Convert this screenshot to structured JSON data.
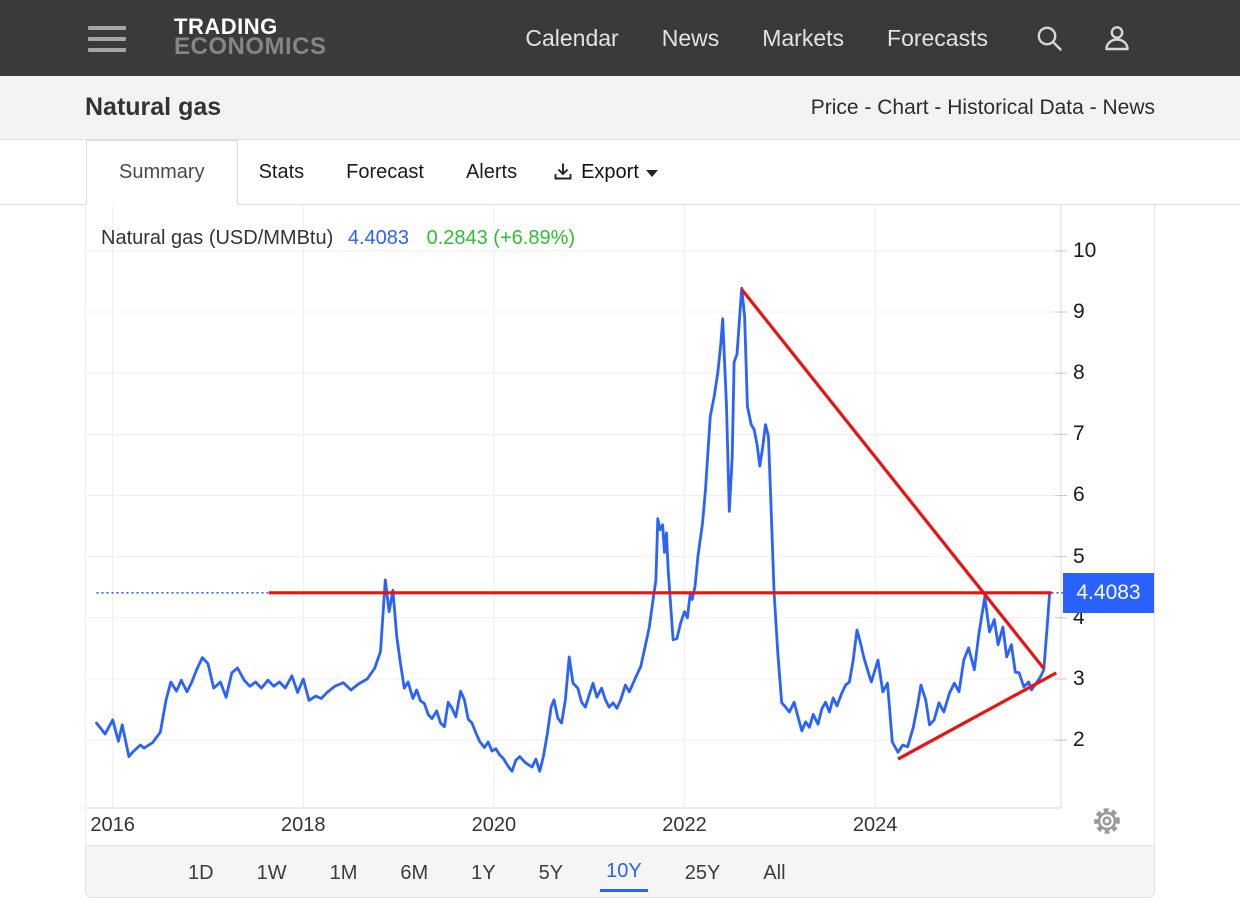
{
  "navbar": {
    "brand_line1": "TRADING",
    "brand_line2": "ECONOMICS",
    "items": [
      "Calendar",
      "News",
      "Markets",
      "Forecasts"
    ],
    "icons": {
      "menu": "hamburger-icon",
      "search": "search-icon",
      "user": "user-icon"
    }
  },
  "header": {
    "title": "Natural gas",
    "links": [
      "Price",
      "Chart",
      "Historical Data",
      "News"
    ],
    "separator": " - "
  },
  "tabs": {
    "items": [
      "Summary",
      "Stats",
      "Forecast",
      "Alerts"
    ],
    "active": "Summary",
    "export_label": "Export",
    "export_icon": "download-icon",
    "export_caret": "caret-down-icon"
  },
  "chart": {
    "instrument_label": "Natural gas (USD/MMBtu)",
    "price_text": "4.4083",
    "change_text": "0.2843 (+6.89%)",
    "badge_value": "4.4083",
    "badge_color": "#2962ff",
    "line_color": "#2962ff",
    "trend_color": "#ee1111",
    "up_color": "#2fbf30",
    "settings_icon": "gear-icon"
  },
  "toolbar": {
    "ranges": [
      "1D",
      "1W",
      "1M",
      "6M",
      "1Y",
      "5Y",
      "10Y",
      "25Y",
      "All"
    ],
    "active": "10Y"
  },
  "chart_data": {
    "type": "line",
    "title": "Natural gas (USD/MMBtu)",
    "unit": "USD/MMBtu",
    "last_price": 4.4083,
    "change": 0.2843,
    "change_pct": 6.89,
    "range_shown": "10Y",
    "grid": true,
    "x_ticks": [
      2016,
      2018,
      2020,
      2022,
      2024
    ],
    "y_ticks": [
      10,
      9,
      8,
      7,
      6,
      5,
      4,
      3,
      2
    ],
    "xlim": [
      2015.72,
      2025.95
    ],
    "ylim": [
      0.89,
      10.75
    ],
    "price_line": {
      "value": 4.4083,
      "style": "dotted",
      "color": "#2962ff"
    },
    "trendlines": [
      {
        "name": "horizontal-resistance",
        "color": "#ee1111",
        "x1": 2017.64,
        "y1": 4.4083,
        "x2": 2025.85,
        "y2": 4.4083
      },
      {
        "name": "downtrend-line",
        "color": "#ee1111",
        "x1": 2022.6,
        "y1": 9.37,
        "x2": 2025.77,
        "y2": 3.17
      },
      {
        "name": "uptrend-line",
        "color": "#ee1111",
        "x1": 2024.24,
        "y1": 1.69,
        "x2": 2025.9,
        "y2": 3.1
      }
    ],
    "series": [
      {
        "name": "Natural gas",
        "color": "#2962ff",
        "points": [
          [
            2015.83,
            2.28
          ],
          [
            2015.92,
            2.1
          ],
          [
            2016.0,
            2.33
          ],
          [
            2016.06,
            1.98
          ],
          [
            2016.1,
            2.25
          ],
          [
            2016.17,
            1.73
          ],
          [
            2016.22,
            1.82
          ],
          [
            2016.29,
            1.92
          ],
          [
            2016.33,
            1.87
          ],
          [
            2016.42,
            1.96
          ],
          [
            2016.5,
            2.13
          ],
          [
            2016.56,
            2.66
          ],
          [
            2016.61,
            2.95
          ],
          [
            2016.67,
            2.8
          ],
          [
            2016.72,
            2.98
          ],
          [
            2016.78,
            2.79
          ],
          [
            2016.83,
            2.95
          ],
          [
            2016.88,
            3.15
          ],
          [
            2016.94,
            3.35
          ],
          [
            2017.0,
            3.25
          ],
          [
            2017.06,
            2.85
          ],
          [
            2017.13,
            2.95
          ],
          [
            2017.19,
            2.7
          ],
          [
            2017.25,
            3.1
          ],
          [
            2017.31,
            3.18
          ],
          [
            2017.38,
            2.98
          ],
          [
            2017.44,
            2.88
          ],
          [
            2017.5,
            2.95
          ],
          [
            2017.56,
            2.85
          ],
          [
            2017.63,
            2.98
          ],
          [
            2017.69,
            2.88
          ],
          [
            2017.75,
            2.95
          ],
          [
            2017.81,
            2.85
          ],
          [
            2017.88,
            3.05
          ],
          [
            2017.94,
            2.78
          ],
          [
            2018.0,
            3.0
          ],
          [
            2018.06,
            2.65
          ],
          [
            2018.13,
            2.72
          ],
          [
            2018.19,
            2.68
          ],
          [
            2018.25,
            2.78
          ],
          [
            2018.33,
            2.88
          ],
          [
            2018.42,
            2.94
          ],
          [
            2018.5,
            2.82
          ],
          [
            2018.58,
            2.92
          ],
          [
            2018.67,
            3.0
          ],
          [
            2018.75,
            3.18
          ],
          [
            2018.81,
            3.45
          ],
          [
            2018.86,
            4.62
          ],
          [
            2018.9,
            4.1
          ],
          [
            2018.94,
            4.45
          ],
          [
            2018.98,
            3.7
          ],
          [
            2019.02,
            3.25
          ],
          [
            2019.06,
            2.85
          ],
          [
            2019.1,
            2.95
          ],
          [
            2019.15,
            2.68
          ],
          [
            2019.19,
            2.82
          ],
          [
            2019.23,
            2.64
          ],
          [
            2019.27,
            2.6
          ],
          [
            2019.31,
            2.42
          ],
          [
            2019.35,
            2.35
          ],
          [
            2019.4,
            2.48
          ],
          [
            2019.44,
            2.28
          ],
          [
            2019.48,
            2.22
          ],
          [
            2019.52,
            2.62
          ],
          [
            2019.56,
            2.52
          ],
          [
            2019.6,
            2.38
          ],
          [
            2019.65,
            2.8
          ],
          [
            2019.69,
            2.66
          ],
          [
            2019.73,
            2.34
          ],
          [
            2019.77,
            2.28
          ],
          [
            2019.81,
            2.12
          ],
          [
            2019.85,
            1.98
          ],
          [
            2019.9,
            1.88
          ],
          [
            2019.94,
            1.97
          ],
          [
            2019.98,
            1.82
          ],
          [
            2020.02,
            1.86
          ],
          [
            2020.06,
            1.76
          ],
          [
            2020.1,
            1.7
          ],
          [
            2020.15,
            1.57
          ],
          [
            2020.19,
            1.49
          ],
          [
            2020.23,
            1.67
          ],
          [
            2020.27,
            1.73
          ],
          [
            2020.33,
            1.63
          ],
          [
            2020.4,
            1.56
          ],
          [
            2020.44,
            1.69
          ],
          [
            2020.48,
            1.49
          ],
          [
            2020.52,
            1.74
          ],
          [
            2020.56,
            2.1
          ],
          [
            2020.6,
            2.54
          ],
          [
            2020.63,
            2.66
          ],
          [
            2020.67,
            2.36
          ],
          [
            2020.71,
            2.28
          ],
          [
            2020.75,
            2.66
          ],
          [
            2020.79,
            3.36
          ],
          [
            2020.83,
            2.93
          ],
          [
            2020.88,
            2.85
          ],
          [
            2020.92,
            2.62
          ],
          [
            2020.96,
            2.54
          ],
          [
            2021.0,
            2.74
          ],
          [
            2021.04,
            2.93
          ],
          [
            2021.08,
            2.7
          ],
          [
            2021.13,
            2.85
          ],
          [
            2021.17,
            2.66
          ],
          [
            2021.21,
            2.54
          ],
          [
            2021.25,
            2.61
          ],
          [
            2021.29,
            2.52
          ],
          [
            2021.33,
            2.66
          ],
          [
            2021.38,
            2.9
          ],
          [
            2021.42,
            2.79
          ],
          [
            2021.46,
            2.93
          ],
          [
            2021.5,
            3.07
          ],
          [
            2021.54,
            3.2
          ],
          [
            2021.58,
            3.48
          ],
          [
            2021.63,
            3.85
          ],
          [
            2021.67,
            4.3
          ],
          [
            2021.7,
            4.62
          ],
          [
            2021.72,
            5.62
          ],
          [
            2021.74,
            5.44
          ],
          [
            2021.77,
            5.52
          ],
          [
            2021.79,
            5.07
          ],
          [
            2021.81,
            5.39
          ],
          [
            2021.83,
            4.75
          ],
          [
            2021.88,
            3.64
          ],
          [
            2021.92,
            3.66
          ],
          [
            2021.96,
            3.92
          ],
          [
            2022.0,
            4.1
          ],
          [
            2022.03,
            4.0
          ],
          [
            2022.06,
            4.41
          ],
          [
            2022.08,
            4.3
          ],
          [
            2022.11,
            4.51
          ],
          [
            2022.14,
            5.0
          ],
          [
            2022.19,
            5.56
          ],
          [
            2022.22,
            6.1
          ],
          [
            2022.27,
            7.3
          ],
          [
            2022.31,
            7.61
          ],
          [
            2022.35,
            8.02
          ],
          [
            2022.38,
            8.48
          ],
          [
            2022.4,
            8.89
          ],
          [
            2022.44,
            7.46
          ],
          [
            2022.47,
            5.74
          ],
          [
            2022.5,
            6.62
          ],
          [
            2022.52,
            8.18
          ],
          [
            2022.55,
            8.31
          ],
          [
            2022.6,
            9.39
          ],
          [
            2022.63,
            8.93
          ],
          [
            2022.66,
            7.46
          ],
          [
            2022.7,
            7.16
          ],
          [
            2022.73,
            7.08
          ],
          [
            2022.76,
            6.84
          ],
          [
            2022.79,
            6.48
          ],
          [
            2022.82,
            6.79
          ],
          [
            2022.85,
            7.16
          ],
          [
            2022.88,
            6.97
          ],
          [
            2022.9,
            6.15
          ],
          [
            2022.94,
            4.41
          ],
          [
            2022.98,
            3.4
          ],
          [
            2023.02,
            2.61
          ],
          [
            2023.06,
            2.54
          ],
          [
            2023.1,
            2.46
          ],
          [
            2023.15,
            2.62
          ],
          [
            2023.19,
            2.38
          ],
          [
            2023.23,
            2.15
          ],
          [
            2023.27,
            2.3
          ],
          [
            2023.31,
            2.21
          ],
          [
            2023.35,
            2.42
          ],
          [
            2023.4,
            2.26
          ],
          [
            2023.44,
            2.51
          ],
          [
            2023.48,
            2.62
          ],
          [
            2023.52,
            2.46
          ],
          [
            2023.56,
            2.69
          ],
          [
            2023.6,
            2.56
          ],
          [
            2023.65,
            2.77
          ],
          [
            2023.69,
            2.9
          ],
          [
            2023.73,
            2.95
          ],
          [
            2023.77,
            3.31
          ],
          [
            2023.81,
            3.8
          ],
          [
            2023.85,
            3.56
          ],
          [
            2023.88,
            3.36
          ],
          [
            2023.92,
            3.15
          ],
          [
            2023.96,
            2.95
          ],
          [
            2024.03,
            3.31
          ],
          [
            2024.08,
            2.79
          ],
          [
            2024.13,
            2.93
          ],
          [
            2024.18,
            1.97
          ],
          [
            2024.24,
            1.8
          ],
          [
            2024.29,
            1.92
          ],
          [
            2024.34,
            1.89
          ],
          [
            2024.4,
            2.21
          ],
          [
            2024.45,
            2.61
          ],
          [
            2024.48,
            2.9
          ],
          [
            2024.53,
            2.66
          ],
          [
            2024.57,
            2.25
          ],
          [
            2024.62,
            2.33
          ],
          [
            2024.67,
            2.61
          ],
          [
            2024.72,
            2.46
          ],
          [
            2024.78,
            2.77
          ],
          [
            2024.83,
            2.93
          ],
          [
            2024.88,
            2.79
          ],
          [
            2024.93,
            3.31
          ],
          [
            2024.98,
            3.51
          ],
          [
            2025.04,
            3.15
          ],
          [
            2025.09,
            3.75
          ],
          [
            2025.15,
            4.34
          ],
          [
            2025.2,
            3.77
          ],
          [
            2025.25,
            3.97
          ],
          [
            2025.29,
            3.56
          ],
          [
            2025.34,
            3.85
          ],
          [
            2025.38,
            3.36
          ],
          [
            2025.43,
            3.56
          ],
          [
            2025.47,
            3.11
          ],
          [
            2025.51,
            3.1
          ],
          [
            2025.56,
            2.87
          ],
          [
            2025.61,
            2.95
          ],
          [
            2025.64,
            2.82
          ],
          [
            2025.69,
            2.93
          ],
          [
            2025.73,
            3.02
          ],
          [
            2025.77,
            3.15
          ],
          [
            2025.81,
            3.97
          ],
          [
            2025.83,
            4.41
          ]
        ]
      }
    ]
  }
}
